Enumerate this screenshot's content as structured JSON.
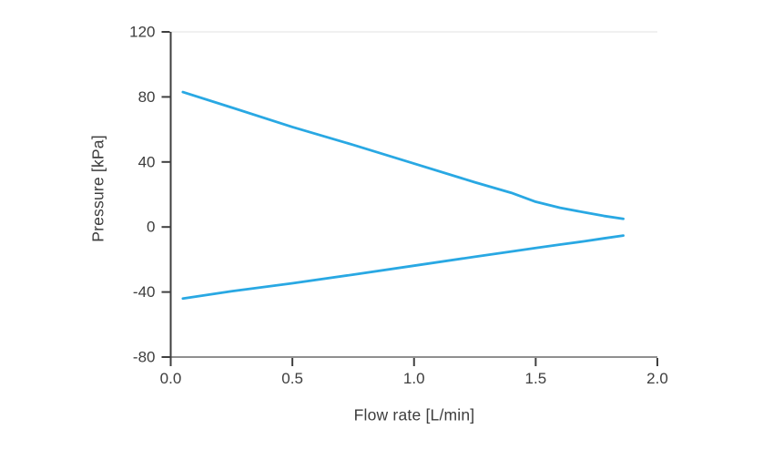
{
  "figure": {
    "background_color": "#ffffff",
    "title": ""
  },
  "chart_data": {
    "type": "line",
    "title": "",
    "xlabel": "Flow rate [L/min]",
    "ylabel": "Pressure [kPa]",
    "xlim": [
      0.0,
      2.0
    ],
    "ylim": [
      -80,
      120
    ],
    "xticks": [
      0.0,
      0.5,
      1.0,
      1.5,
      2.0
    ],
    "xtick_labels": [
      "0.0",
      "0.5",
      "1.0",
      "1.5",
      "2.0"
    ],
    "yticks": [
      120,
      80,
      40,
      0,
      -40,
      -80
    ],
    "ytick_labels": [
      "120",
      "80",
      "40",
      "0",
      "-40",
      "-80"
    ],
    "grid": false,
    "legend": null,
    "style": {
      "line_color": "#29a8e3",
      "line_width": 2.8,
      "left_spine_color": "#3f3f3f",
      "bottom_spine_color": "#8f8f8f",
      "top_border_color": "#ececec",
      "tick_color": "#3f3f3f",
      "text_color": "#3d3d3d"
    },
    "series": [
      {
        "name": "series-1-upper-curve",
        "color": "#29a8e3",
        "x": [
          0.05,
          0.25,
          0.5,
          0.75,
          1.0,
          1.25,
          1.4,
          1.5,
          1.6,
          1.7,
          1.78,
          1.86
        ],
        "y": [
          83,
          73.5,
          61.5,
          50.5,
          39,
          27.5,
          21,
          15.5,
          11.8,
          9,
          6.8,
          5
        ]
      },
      {
        "name": "series-2-lower-curve",
        "color": "#29a8e3",
        "x": [
          0.05,
          0.25,
          0.5,
          0.75,
          1.0,
          1.25,
          1.4,
          1.5,
          1.6,
          1.7,
          1.78,
          1.86
        ],
        "y": [
          -44,
          -39.5,
          -34.6,
          -29.3,
          -23.8,
          -18.3,
          -15.1,
          -12.9,
          -10.8,
          -8.8,
          -7.0,
          -5.3
        ]
      }
    ]
  }
}
